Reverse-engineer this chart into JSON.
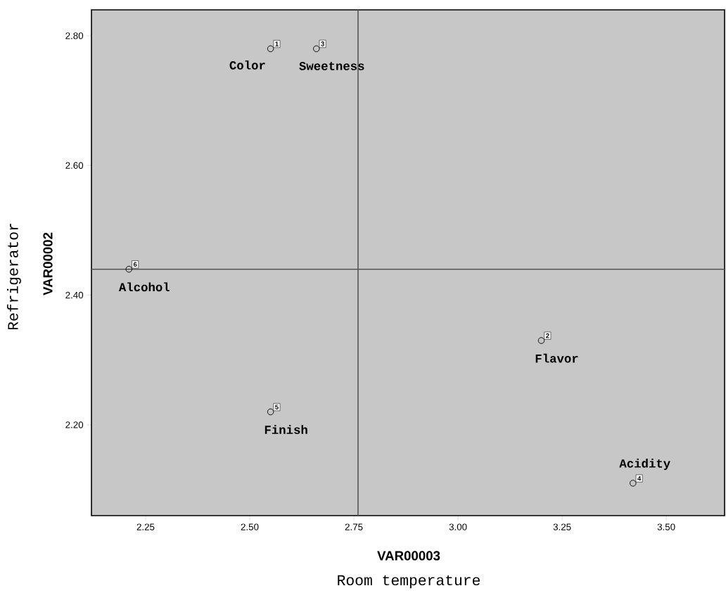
{
  "chart_data": {
    "type": "scatter",
    "xlabel": "VAR00003",
    "ylabel": "VAR00002",
    "annotations": [
      "Room temperature",
      "Refrigerator",
      {
        "text": "Color",
        "x": 2.55,
        "y": 2.78
      },
      {
        "text": "1",
        "x": 2.55,
        "y": 2.78
      },
      {
        "text": "Sweetness",
        "x": 2.66,
        "y": 2.78
      },
      {
        "text": "3",
        "x": 2.66,
        "y": 2.78
      },
      {
        "text": "Alcohol",
        "x": 2.21,
        "y": 2.44
      },
      {
        "text": "6",
        "x": 2.21,
        "y": 2.44
      },
      {
        "text": "Flavor",
        "x": 3.2,
        "y": 2.33
      },
      {
        "text": "2",
        "x": 3.2,
        "y": 2.33
      },
      {
        "text": "Finish",
        "x": 2.55,
        "y": 2.22
      },
      {
        "text": "5",
        "x": 2.55,
        "y": 2.22
      },
      {
        "text": "Acidity",
        "x": 3.42,
        "y": 2.11
      },
      {
        "text": "4",
        "x": 3.42,
        "y": 2.11
      }
    ],
    "series": [
      {
        "color": "#000000",
        "x": [
          2.55,
          2.66,
          2.21,
          3.2,
          2.55,
          3.42
        ],
        "values": [
          2.78,
          2.78,
          2.44,
          2.33,
          2.22,
          2.11
        ]
      }
    ],
    "xlim": [
      2.12,
      3.64
    ],
    "ylim": [
      2.06,
      2.84
    ],
    "xticks": [
      {
        "value": 2.25,
        "label": "2.25"
      },
      {
        "value": 2.5,
        "label": "2.50"
      },
      {
        "value": 2.75,
        "label": "2.75"
      },
      {
        "value": 3.0,
        "label": "3.00"
      },
      {
        "value": 3.25,
        "label": "3.25"
      },
      {
        "value": 3.5,
        "label": "3.50"
      }
    ],
    "yticks": [
      {
        "value": 2.2,
        "label": "2.20"
      },
      {
        "value": 2.4,
        "label": "2.40"
      },
      {
        "value": 2.6,
        "label": "2.60"
      },
      {
        "value": 2.8,
        "label": "2.80"
      }
    ],
    "ref_lines": [
      {
        "axis": "x",
        "value": 2.76
      },
      {
        "axis": "y",
        "value": 2.44
      }
    ],
    "marker": "circle",
    "grid": false
  }
}
